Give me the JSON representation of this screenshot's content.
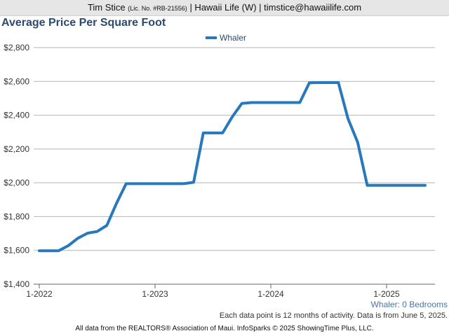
{
  "banner": {
    "name": "Tim Stice",
    "license": "(Lic. No. #RB-21556)",
    "rest": "| Hawaii Life (W) | timstice@hawaiilife.com"
  },
  "title": "Average Price Per Square Foot",
  "subtitle": "Whaler: 0 Bedrooms",
  "note": "Each data point is 12 months of activity. Data is from June 5, 2025.",
  "footer": "All data from the REALTORS® Association of Maui. InfoSparks © 2025 ShowingTime Plus, LLC.",
  "colors": {
    "series": "#2878be",
    "title": "#2c4a6e",
    "grid": "#b4b4b4"
  },
  "chart_data": {
    "type": "line",
    "title": "Average Price Per Square Foot",
    "xlabel": "",
    "ylabel": "",
    "ylim": [
      1400,
      2800
    ],
    "y_ticks": [
      1400,
      1600,
      1800,
      2000,
      2200,
      2400,
      2600,
      2800
    ],
    "y_tick_labels": [
      "$1,400",
      "$1,600",
      "$1,800",
      "$2,000",
      "$2,200",
      "$2,400",
      "$2,600",
      "$2,800"
    ],
    "x_ticks": [
      "1-2022",
      "1-2023",
      "1-2024",
      "1-2025"
    ],
    "grid": true,
    "legend": "top-center",
    "series": [
      {
        "name": "Whaler",
        "x": [
          "2022-01",
          "2022-02",
          "2022-03",
          "2022-04",
          "2022-05",
          "2022-06",
          "2022-07",
          "2022-08",
          "2022-09",
          "2022-10",
          "2022-11",
          "2022-12",
          "2023-01",
          "2023-02",
          "2023-03",
          "2023-04",
          "2023-05",
          "2023-06",
          "2023-07",
          "2023-08",
          "2023-09",
          "2023-10",
          "2023-11",
          "2023-12",
          "2024-01",
          "2024-02",
          "2024-03",
          "2024-04",
          "2024-05",
          "2024-06",
          "2024-07",
          "2024-08",
          "2024-09",
          "2024-10",
          "2024-11",
          "2024-12",
          "2025-01",
          "2025-02",
          "2025-03",
          "2025-04",
          "2025-05"
        ],
        "values": [
          1598,
          1598,
          1598,
          1628,
          1672,
          1702,
          1712,
          1748,
          1878,
          1995,
          1995,
          1995,
          1995,
          1995,
          1995,
          1995,
          2003,
          2295,
          2295,
          2295,
          2390,
          2470,
          2475,
          2475,
          2475,
          2475,
          2475,
          2475,
          2592,
          2593,
          2593,
          2593,
          2380,
          2240,
          1985,
          1985,
          1985,
          1985,
          1985,
          1985,
          1985
        ]
      }
    ]
  }
}
